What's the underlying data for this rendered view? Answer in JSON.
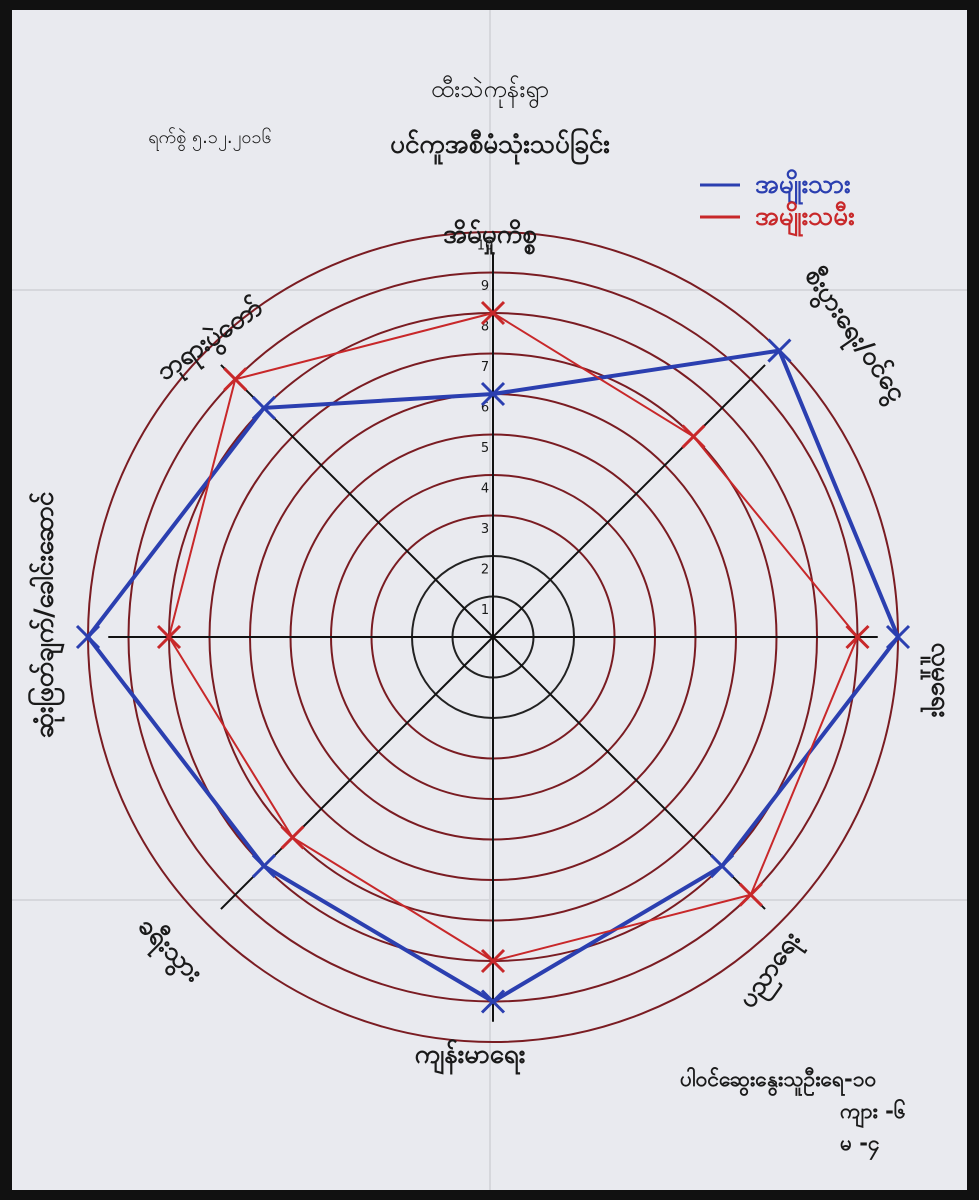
{
  "chart_data": {
    "type": "radar",
    "title": "ထီးသဲကုန်းရွာ",
    "subtitle": "ပင်ကူအစီမံသုံးသပ်ခြင်း",
    "date": "ရက်စွဲ ၅.၁၂.၂၀၁၆",
    "categories": [
      "အိမ်မှုကိစ္စ",
      "စီးပွားရေး/ဝင်ငွေ",
      "လူမှုရေး",
      "ပညာရေး",
      "ကျန်းမာရေး",
      "ခရီးသွား",
      "ဆုံးဖြတ်ချက်/ခေါင်းဆောင်",
      "ဘုရားပွဲတော်"
    ],
    "series": [
      {
        "name": "အမျိုးသား",
        "color": "#2b3fb0",
        "values": [
          6,
          10,
          10,
          8,
          9,
          8,
          10,
          8
        ]
      },
      {
        "name": "အမျိုးသမီး",
        "color": "#c8282a",
        "values": [
          8,
          7,
          9,
          9,
          8,
          7,
          8,
          9
        ]
      }
    ],
    "rlim": [
      0,
      10
    ],
    "rticks": [
      1,
      2,
      3,
      4,
      5,
      6,
      7,
      8,
      9,
      10
    ],
    "legend": "upper right",
    "annotations": [
      "ပါဝင်ဆွေးနွေးသူဦးရေ-၁၀",
      "ကျား -၆",
      "မ -၄"
    ]
  }
}
